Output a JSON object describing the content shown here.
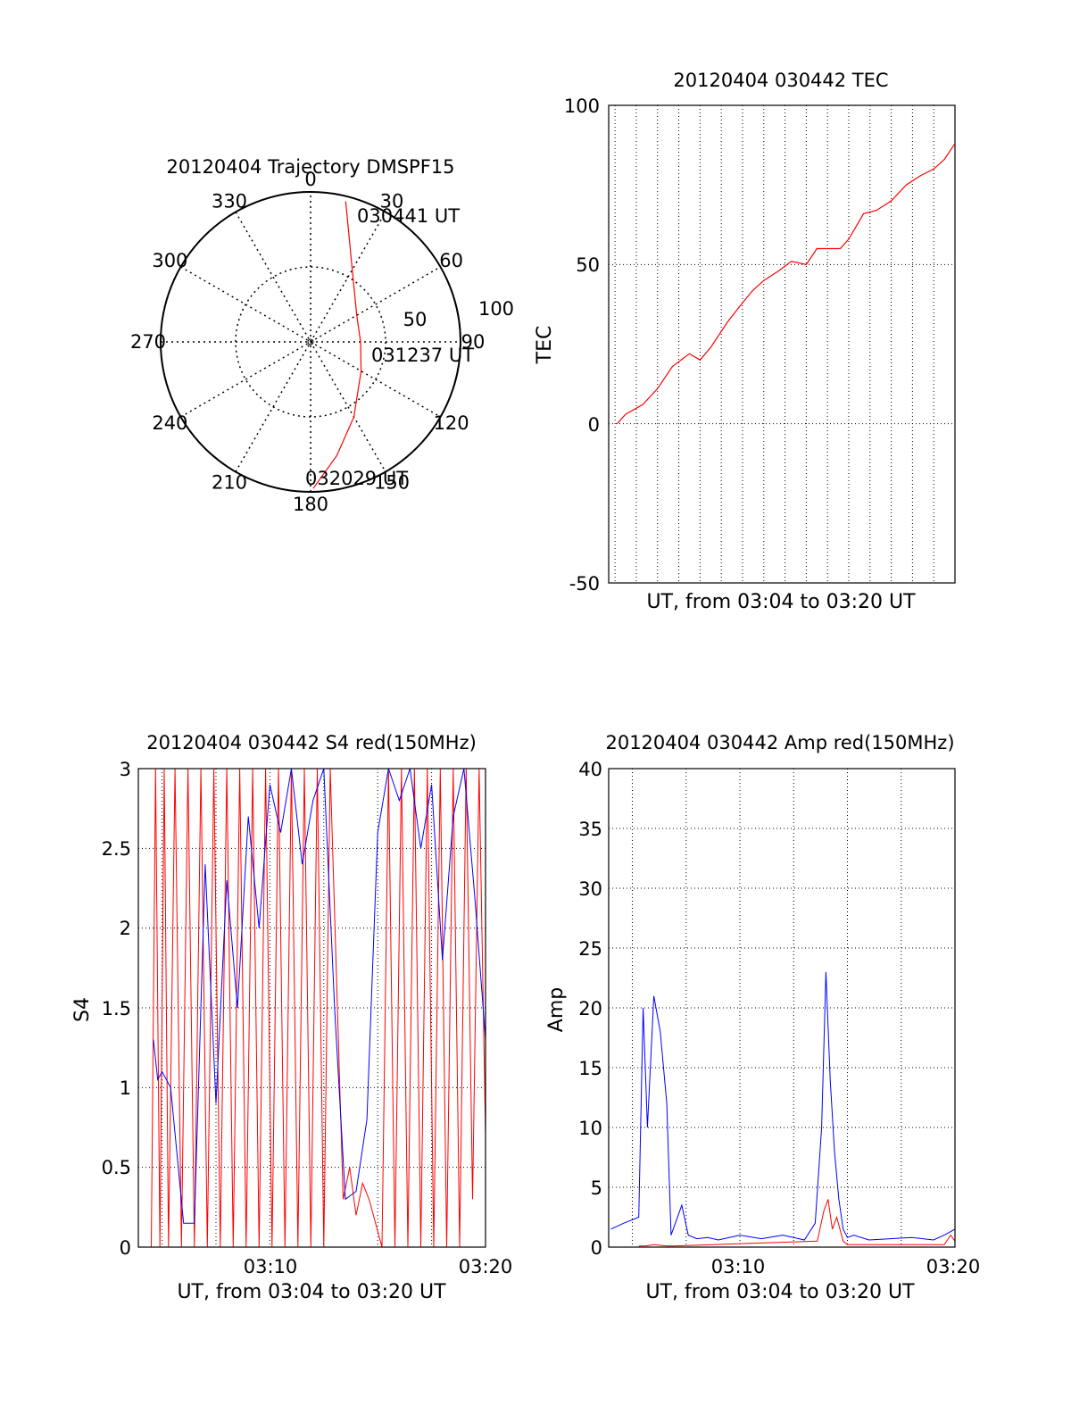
{
  "chart_data": [
    {
      "id": "trajectory",
      "type": "polar",
      "title": "20120404 Trajectory DMSPF15",
      "azimuth_labels": [
        "0",
        "30",
        "60",
        "90",
        "120",
        "150",
        "180",
        "210",
        "240",
        "270",
        "300",
        "330"
      ],
      "radial_labels": [
        "50",
        "100"
      ],
      "radial_max": 90,
      "annotations": [
        {
          "text": "030441 UT",
          "az": 14,
          "elev": 3
        },
        {
          "text": "031237 UT",
          "az": 93,
          "elev": 45
        },
        {
          "text": "032029 UT",
          "az": 179,
          "elev": 2
        }
      ],
      "track": {
        "color": "#ff0000",
        "points": [
          {
            "az": 14,
            "elev": 3
          },
          {
            "az": 30,
            "elev": 40
          },
          {
            "az": 60,
            "elev": 58
          },
          {
            "az": 90,
            "elev": 60
          },
          {
            "az": 120,
            "elev": 55
          },
          {
            "az": 150,
            "elev": 38
          },
          {
            "az": 167,
            "elev": 20
          },
          {
            "az": 179,
            "elev": 2
          }
        ]
      }
    },
    {
      "id": "tec",
      "type": "line",
      "title": "20120404 030442 TEC",
      "xlabel": "UT, from 03:04 to 03:20 UT",
      "ylabel": "TEC",
      "xlim": [
        3.7,
        20.0
      ],
      "ylim": [
        -50,
        100
      ],
      "y_ticks": [
        "100",
        "50",
        "0",
        "-50"
      ],
      "series": [
        {
          "color": "#ff0000",
          "x": [
            4.1,
            4.5,
            5.3,
            6.0,
            6.7,
            7.5,
            8.0,
            8.5,
            9.3,
            10.0,
            10.5,
            11.0,
            11.7,
            12.3,
            13.0,
            13.5,
            14.0,
            14.6,
            15.0,
            15.7,
            16.3,
            17.0,
            17.7,
            18.4,
            19.0,
            19.5,
            20.0
          ],
          "y": [
            0,
            3,
            6,
            11,
            18,
            22,
            20,
            24,
            32,
            38,
            42,
            45,
            48,
            51,
            50,
            55,
            55,
            55,
            58,
            66,
            67,
            70,
            75,
            78,
            80,
            83,
            88
          ]
        }
      ]
    },
    {
      "id": "s4",
      "type": "line",
      "title": "20120404 030442 S4 red(150MHz)",
      "xlabel": "UT, from 03:04 to 03:20 UT",
      "ylabel": "S4",
      "xlim": [
        3.9,
        20.0
      ],
      "ylim": [
        0,
        3
      ],
      "y_ticks": [
        "3",
        "2.5",
        "2",
        "1.5",
        "1",
        "0.5",
        "0"
      ],
      "x_ticks": [
        "03:10",
        "03:20"
      ],
      "series": [
        {
          "name": "blue",
          "color": "#0000ff",
          "x": [
            4.6,
            4.8,
            5.0,
            5.4,
            6.0,
            6.5,
            7.0,
            7.5,
            8.0,
            8.5,
            9.0,
            9.5,
            10.0,
            10.5,
            11.0,
            11.5,
            12.0,
            12.5,
            13.0,
            13.5,
            14.0,
            14.5,
            15.0,
            15.5,
            16.0,
            16.5,
            17.0,
            17.5,
            18.0,
            18.5,
            19.0,
            19.5,
            20.0
          ],
          "y": [
            1.3,
            1.05,
            1.1,
            1.0,
            0.15,
            0.15,
            2.4,
            0.9,
            2.3,
            1.5,
            2.7,
            2.0,
            2.9,
            2.6,
            3.0,
            2.4,
            2.8,
            3.0,
            1.5,
            0.3,
            0.35,
            0.8,
            2.6,
            3.0,
            2.8,
            3.0,
            2.5,
            2.9,
            1.8,
            2.7,
            3.0,
            2.2,
            1.3
          ]
        },
        {
          "name": "red",
          "color": "#ff0000",
          "x": [
            4.5,
            4.7,
            4.9,
            5.1,
            5.3,
            5.6,
            5.9,
            6.2,
            6.5,
            6.8,
            7.1,
            7.4,
            7.7,
            8.0,
            8.3,
            8.6,
            8.9,
            9.2,
            9.5,
            9.8,
            10.1,
            10.4,
            10.7,
            11.0,
            11.3,
            11.6,
            11.9,
            12.2,
            12.5,
            12.8,
            13.4,
            13.7,
            14.0,
            14.3,
            14.6,
            15.2,
            15.5,
            15.8,
            16.1,
            16.4,
            16.7,
            17.0,
            17.3,
            17.6,
            17.9,
            18.2,
            18.5,
            18.8,
            19.1,
            19.4,
            19.7,
            20.0
          ],
          "y": [
            0,
            3,
            0,
            3,
            0,
            3,
            0,
            3,
            0,
            3,
            0,
            3,
            0,
            3,
            0,
            3,
            0,
            3,
            0,
            3,
            0,
            3,
            0,
            3,
            0,
            3,
            0,
            3,
            0,
            3,
            0.3,
            0.5,
            0.2,
            0.4,
            0.3,
            0,
            3,
            0,
            3,
            0,
            3,
            0,
            3,
            0,
            3,
            0,
            3,
            0,
            3,
            0.3,
            3,
            0.7
          ]
        }
      ]
    },
    {
      "id": "amp",
      "type": "line",
      "title": "20120404 030442 Amp red(150MHz)",
      "xlabel": "UT, from 03:04 to 03:20 UT",
      "ylabel": "Amp",
      "xlim": [
        3.9,
        20.0
      ],
      "ylim": [
        0,
        40
      ],
      "y_ticks": [
        "40",
        "35",
        "30",
        "25",
        "20",
        "15",
        "10",
        "5",
        "0"
      ],
      "x_ticks": [
        "03:10",
        "03:20"
      ],
      "series": [
        {
          "name": "blue",
          "color": "#0000ff",
          "x": [
            4.0,
            4.6,
            5.3,
            5.5,
            5.7,
            6.0,
            6.3,
            6.6,
            6.8,
            7.0,
            7.3,
            7.6,
            8.0,
            8.5,
            9.0,
            10.0,
            11.0,
            12.0,
            13.0,
            13.5,
            13.8,
            14.0,
            14.2,
            14.4,
            14.6,
            14.8,
            15.0,
            15.3,
            16.0,
            17.0,
            18.0,
            19.0,
            19.5,
            20.0
          ],
          "y": [
            1.5,
            2.0,
            2.5,
            20,
            10,
            21,
            18,
            12,
            1.0,
            2.0,
            3.5,
            1.0,
            0.7,
            0.8,
            0.6,
            1.0,
            0.7,
            1.0,
            0.6,
            2.0,
            10,
            23,
            14,
            8,
            4,
            1.5,
            0.8,
            1.0,
            0.6,
            0.7,
            0.8,
            0.6,
            1.0,
            1.5
          ]
        },
        {
          "name": "red",
          "color": "#ff0000",
          "x": [
            5.3,
            5.6,
            6.0,
            6.6,
            6.9,
            13.6,
            13.9,
            14.1,
            14.3,
            14.5,
            14.8,
            15.0,
            19.5,
            19.8,
            20.0
          ],
          "y": [
            0.1,
            0.1,
            0.2,
            0.1,
            0.1,
            0.5,
            3.0,
            4.0,
            1.5,
            2.5,
            0.5,
            0.2,
            0.2,
            1.0,
            0.5
          ]
        }
      ]
    }
  ]
}
